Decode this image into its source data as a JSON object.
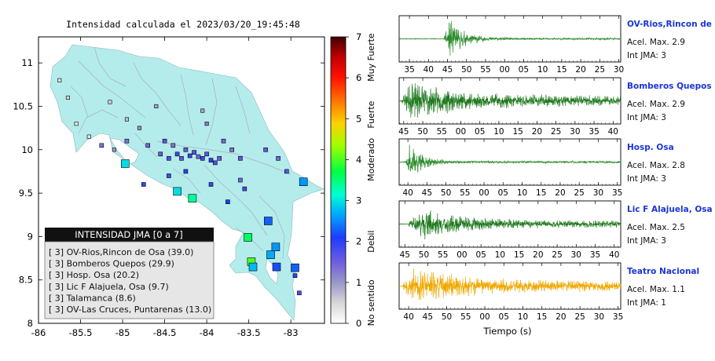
{
  "map": {
    "title": "Intensidad calculada el 2023/03/20_19:45:48",
    "xlim": [
      -86,
      -82.6
    ],
    "ylim": [
      8,
      11.3
    ],
    "x_ticks": [
      {
        "value": -86,
        "label": "-86"
      },
      {
        "value": -85.5,
        "label": "-85.5"
      },
      {
        "value": -85,
        "label": "-85"
      },
      {
        "value": -84.5,
        "label": "-84.5"
      },
      {
        "value": -84,
        "label": "-84"
      },
      {
        "value": -83.5,
        "label": "-83.5"
      },
      {
        "value": -83,
        "label": "-83"
      }
    ],
    "y_ticks": [
      {
        "value": 8,
        "label": "8"
      },
      {
        "value": 8.5,
        "label": "8.5"
      },
      {
        "value": 9,
        "label": "9"
      },
      {
        "value": 9.5,
        "label": "9.5"
      },
      {
        "value": 10,
        "label": "10"
      },
      {
        "value": 10.5,
        "label": "10.5"
      },
      {
        "value": 11,
        "label": "11"
      }
    ],
    "land_color": "#b4ecec",
    "legend": {
      "header": "INTENSIDAD JMA [0 a 7]",
      "entries": [
        "[ 3]  OV-Rios,Rincon de Osa (39.0)",
        "[ 3]  Bomberos Quepos (29.9)",
        "[ 3]  Hosp. Osa (20.2)",
        "[ 3]  Lic F Alajuela, Osa (9.7)",
        "[ 3]  Talamanca (8.6)",
        "[ 3]  OV-Las Cruces, Puntarenas (13.0)"
      ]
    },
    "stations": [
      {
        "lon": -84.97,
        "lat": 9.84,
        "i": 3.0
      },
      {
        "lon": -84.35,
        "lat": 9.52,
        "i": 3.0
      },
      {
        "lon": -84.17,
        "lat": 9.44,
        "i": 3.4
      },
      {
        "lon": -83.51,
        "lat": 8.99,
        "i": 3.6
      },
      {
        "lon": -83.47,
        "lat": 8.71,
        "i": 4.0
      },
      {
        "lon": -83.45,
        "lat": 8.65,
        "i": 2.8
      },
      {
        "lon": -83.27,
        "lat": 9.18,
        "i": 2.3
      },
      {
        "lon": -83.18,
        "lat": 8.88,
        "i": 2.6
      },
      {
        "lon": -83.24,
        "lat": 8.79,
        "i": 2.7
      },
      {
        "lon": -83.17,
        "lat": 8.65,
        "i": 2.2
      },
      {
        "lon": -82.95,
        "lat": 8.64,
        "i": 2.3
      },
      {
        "lon": -82.85,
        "lat": 9.63,
        "i": 2.6
      },
      {
        "lon": -85.4,
        "lat": 10.15,
        "i": 0.4
      },
      {
        "lon": -85.25,
        "lat": 10.05,
        "i": 1.3
      },
      {
        "lon": -85.1,
        "lat": 10.0,
        "i": 1.0
      },
      {
        "lon": -84.95,
        "lat": 10.1,
        "i": 1.3
      },
      {
        "lon": -84.8,
        "lat": 10.25,
        "i": 1.0
      },
      {
        "lon": -84.7,
        "lat": 10.05,
        "i": 1.4
      },
      {
        "lon": -84.55,
        "lat": 9.95,
        "i": 1.5
      },
      {
        "lon": -84.5,
        "lat": 10.1,
        "i": 1.6
      },
      {
        "lon": -84.45,
        "lat": 9.9,
        "i": 1.7
      },
      {
        "lon": -84.4,
        "lat": 10.05,
        "i": 1.3
      },
      {
        "lon": -84.35,
        "lat": 9.95,
        "i": 1.8
      },
      {
        "lon": -84.3,
        "lat": 9.9,
        "i": 1.6
      },
      {
        "lon": -84.25,
        "lat": 10.0,
        "i": 1.5
      },
      {
        "lon": -84.2,
        "lat": 9.93,
        "i": 1.9
      },
      {
        "lon": -84.15,
        "lat": 9.97,
        "i": 1.7
      },
      {
        "lon": -84.1,
        "lat": 9.92,
        "i": 1.4
      },
      {
        "lon": -84.05,
        "lat": 9.9,
        "i": 1.8
      },
      {
        "lon": -84.0,
        "lat": 9.95,
        "i": 1.6
      },
      {
        "lon": -83.95,
        "lat": 9.88,
        "i": 2.0
      },
      {
        "lon": -83.9,
        "lat": 9.85,
        "i": 1.7
      },
      {
        "lon": -83.85,
        "lat": 9.9,
        "i": 1.5
      },
      {
        "lon": -84.0,
        "lat": 10.3,
        "i": 1.2
      },
      {
        "lon": -84.05,
        "lat": 10.45,
        "i": 0.9
      },
      {
        "lon": -83.8,
        "lat": 10.1,
        "i": 1.4
      },
      {
        "lon": -83.7,
        "lat": 10.0,
        "i": 1.3
      },
      {
        "lon": -83.6,
        "lat": 9.9,
        "i": 1.6
      },
      {
        "lon": -83.3,
        "lat": 10.0,
        "i": 1.5
      },
      {
        "lon": -83.15,
        "lat": 9.9,
        "i": 1.4
      },
      {
        "lon": -83.05,
        "lat": 9.75,
        "i": 1.6
      },
      {
        "lon": -84.6,
        "lat": 10.5,
        "i": 0.9
      },
      {
        "lon": -84.95,
        "lat": 10.35,
        "i": 0.7
      },
      {
        "lon": -85.15,
        "lat": 10.55,
        "i": 0.6
      },
      {
        "lon": -85.55,
        "lat": 10.3,
        "i": 0.3
      },
      {
        "lon": -85.65,
        "lat": 10.6,
        "i": 0.5
      },
      {
        "lon": -85.75,
        "lat": 10.8,
        "i": 0.4
      },
      {
        "lon": -84.75,
        "lat": 9.6,
        "i": 1.9
      },
      {
        "lon": -84.45,
        "lat": 9.7,
        "i": 1.8
      },
      {
        "lon": -84.25,
        "lat": 9.75,
        "i": 2.0
      },
      {
        "lon": -83.95,
        "lat": 9.6,
        "i": 1.9
      },
      {
        "lon": -83.75,
        "lat": 9.4,
        "i": 2.1
      },
      {
        "lon": -83.55,
        "lat": 9.55,
        "i": 1.8
      },
      {
        "lon": -83.6,
        "lat": 9.65,
        "i": 1.4
      },
      {
        "lon": -82.95,
        "lat": 8.55,
        "i": 2.0
      },
      {
        "lon": -82.9,
        "lat": 8.35,
        "i": 1.7
      }
    ]
  },
  "colorbar": {
    "min": 0,
    "max": 7,
    "ticks": [
      "0",
      "1",
      "2",
      "3",
      "4",
      "5",
      "6",
      "7"
    ],
    "labels": [
      {
        "text": "No sentido",
        "value": 0.5
      },
      {
        "text": "Debil",
        "value": 2
      },
      {
        "text": "Moderado",
        "value": 4
      },
      {
        "text": "Fuerte",
        "value": 5.1
      },
      {
        "text": "Muy Fuerte",
        "value": 6.5
      }
    ]
  },
  "traces": [
    {
      "station": "OV-Rios,Rincon de Osa",
      "acel": "Acel. Max. 2.9",
      "jma": "Int JMA: 3",
      "ticks": [
        "35",
        "40",
        "45",
        "50",
        "55",
        "00",
        "05",
        "10",
        "15",
        "20",
        "25",
        "30"
      ],
      "t0": 32.3,
      "span": 58.2,
      "onset": 44.2,
      "peak": 45.5,
      "dur": 12,
      "amp": 1.0,
      "tail": 0.05,
      "color": "#2a8a2a",
      "seed": 11
    },
    {
      "station": "Bomberos Quepos",
      "acel": "Acel. Max. 2.9",
      "jma": "Int JMA: 3",
      "ticks": [
        "45",
        "50",
        "55",
        "00",
        "05",
        "10",
        "15",
        "20",
        "25",
        "30",
        "35",
        "40"
      ],
      "t0": 43.8,
      "span": 58.2,
      "onset": 44.5,
      "peak": 47.0,
      "dur": 40,
      "amp": 1.0,
      "tail": 0.25,
      "color": "#1f7a1f",
      "seed": 23
    },
    {
      "station": "Hosp. Osa",
      "acel": "Acel. Max. 2.8",
      "jma": "Int JMA: 3",
      "ticks": [
        "40",
        "45",
        "50",
        "55",
        "00",
        "05",
        "10",
        "15",
        "20",
        "25",
        "30",
        "35"
      ],
      "t0": 37.7,
      "span": 58.2,
      "onset": 39.5,
      "peak": 40.5,
      "dur": 10,
      "amp": 1.0,
      "tail": 0.06,
      "color": "#2a8a2a",
      "seed": 37
    },
    {
      "station": "Lic F Alajuela, Osa",
      "acel": "Acel. Max. 2.5",
      "jma": "Int JMA: 3",
      "ticks": [
        "45",
        "50",
        "55",
        "00",
        "05",
        "10",
        "15",
        "20",
        "25",
        "30",
        "35",
        "40"
      ],
      "t0": 43.5,
      "span": 58.2,
      "onset": 46.0,
      "peak": 50.5,
      "dur": 30,
      "amp": 0.85,
      "tail": 0.2,
      "color": "#1f7a1f",
      "seed": 41
    },
    {
      "station": "Teatro Nacional",
      "acel": "Acel. Max. 1.1",
      "jma": "Int JMA: 1",
      "ticks": [
        "40",
        "45",
        "50",
        "55",
        "00",
        "05",
        "10",
        "15",
        "20",
        "25",
        "30",
        "35"
      ],
      "t0": 37.5,
      "span": 58.2,
      "onset": 38.5,
      "peak": 41.0,
      "dur": 45,
      "amp": 0.9,
      "tail": 0.3,
      "color": "#f0a800",
      "seed": 53
    }
  ],
  "xlabel": "Tiempo (s)"
}
